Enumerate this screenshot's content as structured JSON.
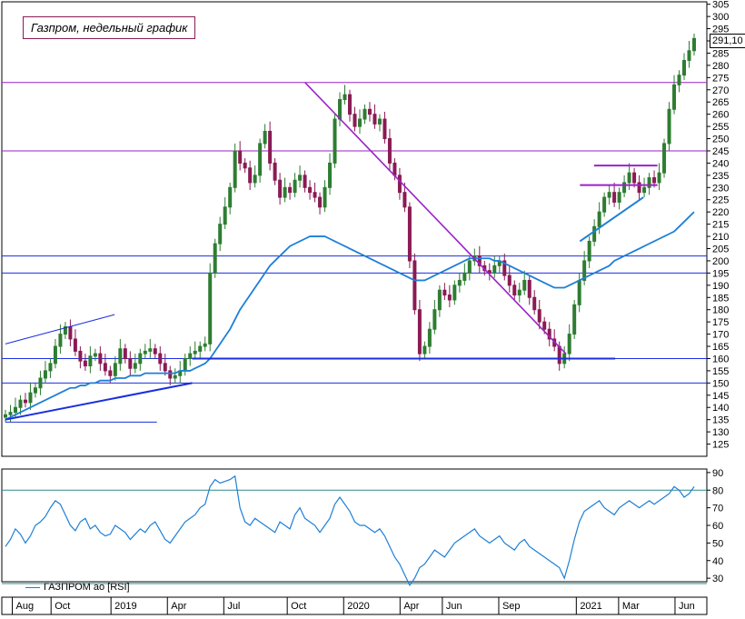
{
  "title": "Газпром, недельный график",
  "last_price_label": "291,10",
  "rsi_legend": "ГАЗПРОМ ао [RSI]",
  "colors": {
    "up_candle": "#2e7d32",
    "down_candle": "#8a1b54",
    "ma": "#1e7fd6",
    "trend_purple": "#9b22c8",
    "level_blue": "#1a2ee0",
    "rsi_line": "#1e7fd6",
    "rsi_band": "#2a8a8a"
  },
  "chart_data": [
    {
      "type": "candlestick",
      "title": "Газпром, недельный график",
      "ylim": [
        120,
        306
      ],
      "y_ticks": [
        125,
        130,
        135,
        140,
        145,
        150,
        155,
        160,
        165,
        170,
        175,
        180,
        185,
        190,
        195,
        200,
        205,
        210,
        215,
        220,
        225,
        230,
        235,
        240,
        245,
        250,
        255,
        260,
        265,
        270,
        275,
        280,
        285,
        290,
        295,
        300,
        305
      ],
      "x_ticks": [
        "Aug",
        "Oct",
        "2019",
        "Apr",
        "Jul",
        "Oct",
        "2020",
        "Apr",
        "Jun",
        "Sep",
        "2021",
        "Mar",
        "Jun"
      ],
      "close_series": [
        137,
        138,
        140,
        143,
        142,
        146,
        148,
        152,
        155,
        158,
        165,
        170,
        173,
        168,
        163,
        159,
        157,
        161,
        162,
        158,
        155,
        153,
        158,
        164,
        160,
        156,
        158,
        162,
        163,
        164,
        162,
        158,
        155,
        152,
        153,
        155,
        160,
        162,
        163,
        165,
        166,
        195,
        207,
        215,
        222,
        230,
        245,
        240,
        238,
        232,
        235,
        248,
        253,
        240,
        233,
        226,
        230,
        228,
        233,
        235,
        230,
        228,
        226,
        222,
        230,
        240,
        258,
        266,
        268,
        260,
        255,
        258,
        262,
        260,
        256,
        258,
        250,
        240,
        235,
        228,
        222,
        200,
        180,
        162,
        165,
        172,
        180,
        188,
        186,
        184,
        190,
        192,
        195,
        200,
        202,
        198,
        196,
        195,
        198,
        200,
        194,
        190,
        186,
        188,
        192,
        185,
        180,
        175,
        172,
        168,
        165,
        158,
        162,
        170,
        182,
        192,
        200,
        208,
        214,
        220,
        226,
        228,
        224,
        228,
        232,
        236,
        232,
        228,
        230,
        234,
        232,
        236,
        248,
        262,
        272,
        276,
        282,
        286,
        291
      ],
      "ma_series": [
        135,
        136,
        137,
        138,
        139,
        140,
        141,
        142,
        143,
        144,
        145,
        146,
        147,
        148,
        148,
        149,
        149,
        150,
        150,
        151,
        151,
        151,
        152,
        152,
        152,
        153,
        153,
        153,
        154,
        154,
        154,
        154,
        154,
        154,
        154,
        155,
        155,
        155,
        156,
        157,
        158,
        160,
        163,
        166,
        169,
        172,
        176,
        180,
        183,
        186,
        189,
        192,
        195,
        198,
        200,
        202,
        204,
        206,
        207,
        208,
        209,
        210,
        210,
        210,
        210,
        209,
        208,
        207,
        206,
        205,
        204,
        203,
        202,
        201,
        200,
        199,
        198,
        197,
        196,
        195,
        194,
        193,
        192,
        192,
        192,
        193,
        194,
        195,
        196,
        197,
        198,
        199,
        200,
        201,
        201,
        201,
        201,
        201,
        200,
        200,
        199,
        198,
        197,
        196,
        195,
        194,
        193,
        192,
        191,
        190,
        189,
        189,
        189,
        190,
        191,
        192,
        193,
        194,
        195,
        196,
        197,
        198,
        200,
        201,
        202,
        203,
        204,
        205,
        206,
        207,
        208,
        209,
        210,
        211,
        212,
        214,
        216,
        218,
        220
      ],
      "levels": [
        {
          "value": 273,
          "color": "#9b22c8"
        },
        {
          "value": 245,
          "color": "#9b22c8"
        },
        {
          "value": 202,
          "color": "#1a2ee0"
        },
        {
          "value": 195,
          "color": "#1a2ee0"
        },
        {
          "value": 160,
          "color": "#1a2ee0"
        },
        {
          "value": 150,
          "color": "#1a2ee0"
        }
      ]
    },
    {
      "type": "line",
      "series": [
        {
          "name": "ГАЗПРОМ ао [RSI]"
        }
      ],
      "ylim": [
        28,
        92
      ],
      "y_ticks": [
        30,
        40,
        50,
        60,
        70,
        80,
        90
      ],
      "bands": [
        80,
        27
      ],
      "values": [
        48,
        52,
        58,
        55,
        50,
        54,
        60,
        62,
        65,
        70,
        74,
        72,
        66,
        60,
        57,
        62,
        64,
        58,
        60,
        56,
        54,
        55,
        60,
        58,
        56,
        52,
        55,
        58,
        56,
        60,
        62,
        57,
        52,
        50,
        54,
        58,
        62,
        64,
        66,
        70,
        72,
        82,
        86,
        84,
        85,
        86,
        88,
        70,
        62,
        60,
        64,
        62,
        60,
        58,
        56,
        62,
        60,
        58,
        66,
        70,
        64,
        62,
        60,
        56,
        60,
        64,
        72,
        76,
        72,
        68,
        62,
        60,
        60,
        58,
        56,
        58,
        54,
        48,
        42,
        38,
        32,
        26,
        30,
        36,
        38,
        42,
        46,
        44,
        42,
        46,
        50,
        52,
        54,
        56,
        58,
        54,
        52,
        50,
        52,
        54,
        50,
        48,
        46,
        50,
        52,
        48,
        46,
        44,
        42,
        40,
        38,
        36,
        30,
        40,
        52,
        62,
        68,
        70,
        72,
        74,
        70,
        68,
        66,
        70,
        72,
        74,
        72,
        70,
        72,
        74,
        72,
        74,
        76,
        78,
        82,
        80,
        76,
        78,
        82
      ]
    }
  ]
}
